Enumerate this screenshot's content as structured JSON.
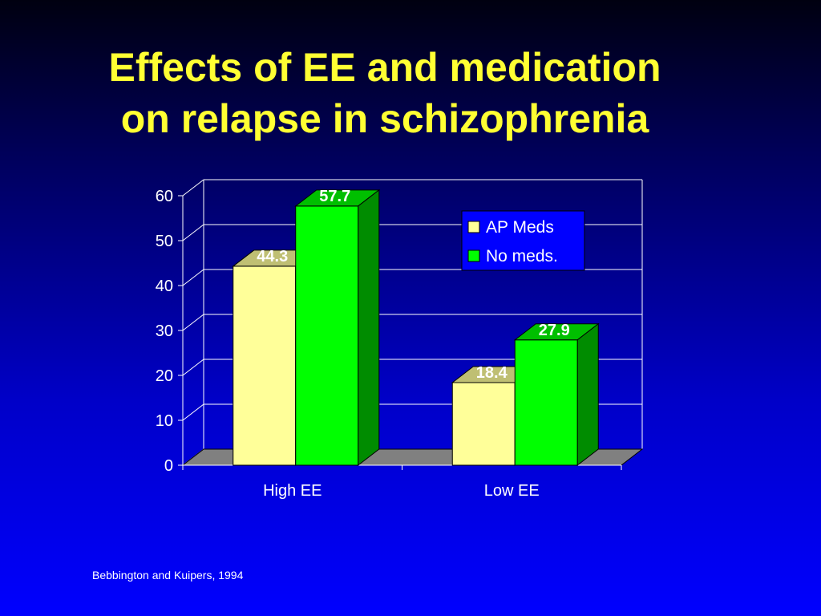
{
  "slide": {
    "title_line1": "Effects of EE and medication",
    "title_line2": "on relapse in schizophrenia",
    "citation": "Bebbington and Kuipers, 1994"
  },
  "chart_data": {
    "type": "bar",
    "categories": [
      "High EE",
      "Low EE"
    ],
    "series": [
      {
        "name": "AP Meds",
        "values": [
          44.3,
          18.4
        ],
        "color": "#ffff99"
      },
      {
        "name": "No meds.",
        "values": [
          57.7,
          27.9
        ],
        "color": "#00ff00"
      }
    ],
    "data_labels": [
      [
        "44.3",
        "18.4"
      ],
      [
        "57.7",
        "27.9"
      ]
    ],
    "ylim": [
      0,
      60
    ],
    "yticks": [
      0,
      10,
      20,
      30,
      40,
      50,
      60
    ],
    "xlabel": "",
    "ylabel": "",
    "grid": true,
    "three_d": true,
    "legend_position": "top-right",
    "colors": {
      "floor": "#808080",
      "grid": "#ffffff",
      "axis_text": "#ffffff",
      "legend_bg": "#0000ff"
    }
  }
}
